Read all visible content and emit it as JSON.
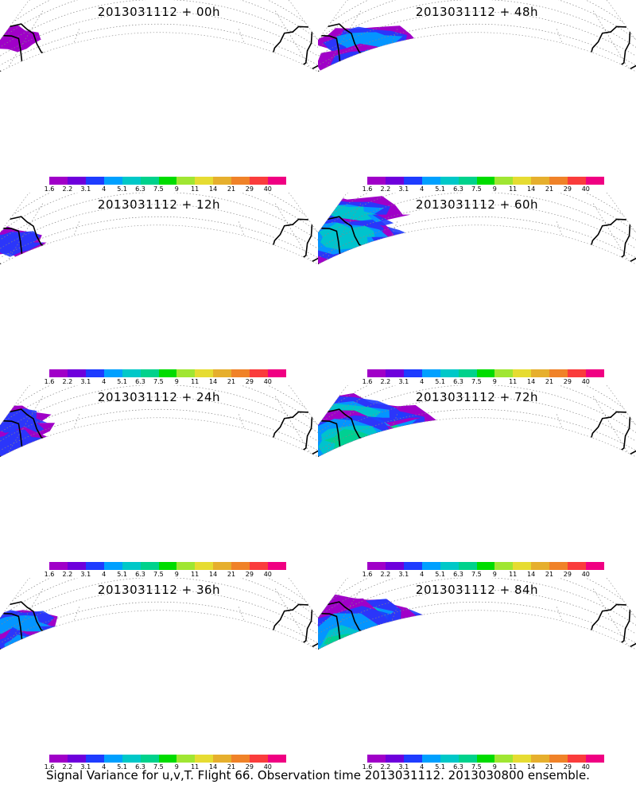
{
  "panels": [
    {
      "title": "2013031112 + 00h",
      "intensity": 0.15,
      "hotspot": true
    },
    {
      "title": "2013031112 + 48h",
      "intensity": 0.55,
      "hotspot": false
    },
    {
      "title": "2013031112 + 12h",
      "intensity": 0.2,
      "hotspot": false
    },
    {
      "title": "2013031112 + 60h",
      "intensity": 0.7,
      "hotspot": false
    },
    {
      "title": "2013031112 + 24h",
      "intensity": 0.3,
      "hotspot": false
    },
    {
      "title": "2013031112 + 72h",
      "intensity": 0.85,
      "hotspot": false
    },
    {
      "title": "2013031112 + 36h",
      "intensity": 0.4,
      "hotspot": false
    },
    {
      "title": "2013031112 + 84h",
      "intensity": 1.0,
      "hotspot": false
    }
  ],
  "colorbar": {
    "labels": [
      "1.6",
      "2.2",
      "3.1",
      "4",
      "5.1",
      "6.3",
      "7.5",
      "9",
      "11",
      "14",
      "21",
      "29",
      "40"
    ],
    "colors": [
      "#a000c8",
      "#6e00dc",
      "#1e3cff",
      "#00a0ff",
      "#00c8c8",
      "#00d28c",
      "#00dc00",
      "#a0e632",
      "#e6dc32",
      "#e6af2d",
      "#f08228",
      "#fa3c3c",
      "#f00082"
    ]
  },
  "caption": "Signal Variance for u,v,T. Flight 66. Observation time 2013031112. 2013030800 ensemble."
}
